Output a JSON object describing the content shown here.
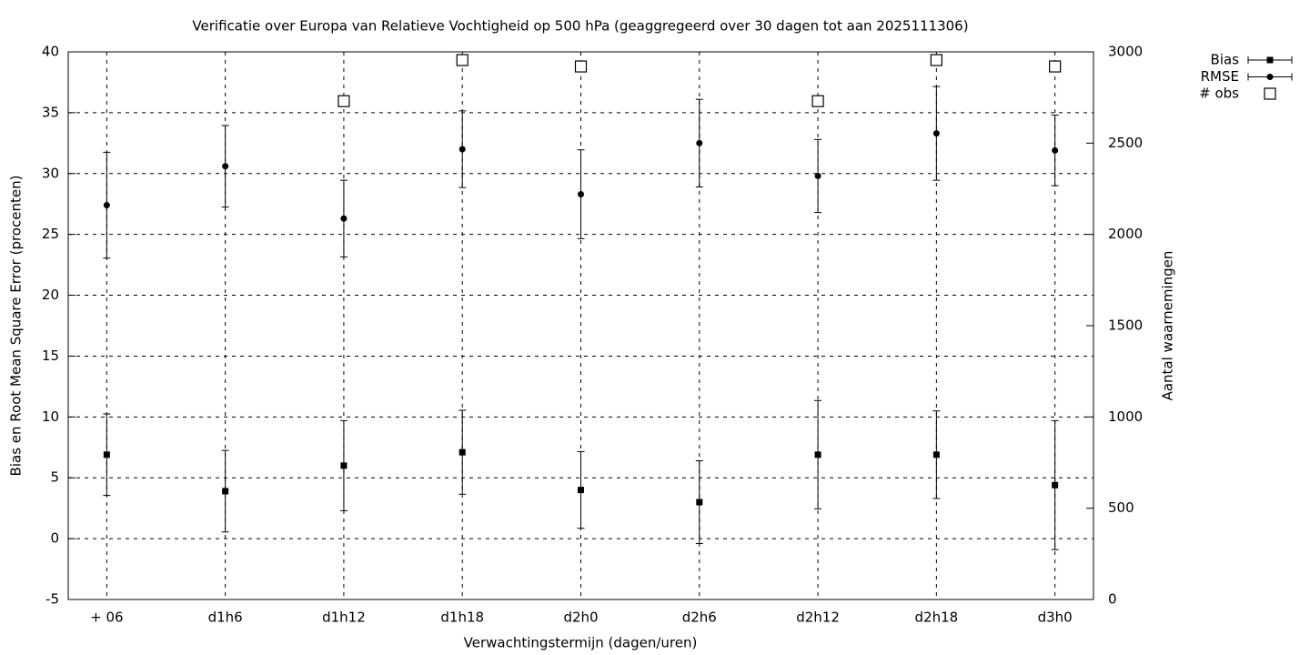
{
  "chart_data": {
    "type": "errorbar",
    "title": "Verificatie over Europa van Relatieve Vochtigheid op 500 hPa (geaggregeerd over 30 dagen tot aan 2025111306)",
    "x_label": "Verwachtingstermijn (dagen/uren)",
    "y_label": "Bias en Root Mean Square Error (procenten)",
    "y2_label": "Aantal waarnemingen",
    "categories": [
      "+ 06",
      "d1h6",
      "d1h12",
      "d1h18",
      "d2h0",
      "d2h6",
      "d2h12",
      "d2h18",
      "d3h0"
    ],
    "series": [
      {
        "name": "Bias",
        "color": "#000000",
        "marker": "square",
        "values": [
          6.9,
          3.9,
          6.0,
          7.1,
          4.0,
          3.0,
          6.9,
          6.9,
          4.4
        ],
        "errors": [
          3.35,
          3.35,
          3.7,
          3.45,
          3.15,
          3.4,
          4.45,
          3.6,
          5.3
        ]
      },
      {
        "name": "RMSE",
        "color": "#000000",
        "marker": "circle",
        "values": [
          27.4,
          30.6,
          26.3,
          32.0,
          28.3,
          32.5,
          29.8,
          33.3,
          31.9
        ],
        "errors": [
          4.35,
          3.35,
          3.15,
          3.15,
          3.65,
          3.6,
          3.0,
          3.85,
          2.9
        ]
      },
      {
        "name": "# obs",
        "color": "#000000",
        "marker": "open-square",
        "axis": "y2",
        "values": [
          null,
          null,
          2730,
          2955,
          2920,
          null,
          2730,
          2955,
          2920
        ]
      }
    ],
    "ylim": [
      -5,
      40
    ],
    "yticks": [
      -5,
      0,
      5,
      10,
      15,
      20,
      25,
      30,
      35,
      40
    ],
    "y2lim": [
      0,
      3000
    ],
    "y2ticks": [
      0,
      500,
      1000,
      1500,
      2000,
      2500,
      3000
    ],
    "grid": true,
    "legend": "outside-top-right"
  }
}
